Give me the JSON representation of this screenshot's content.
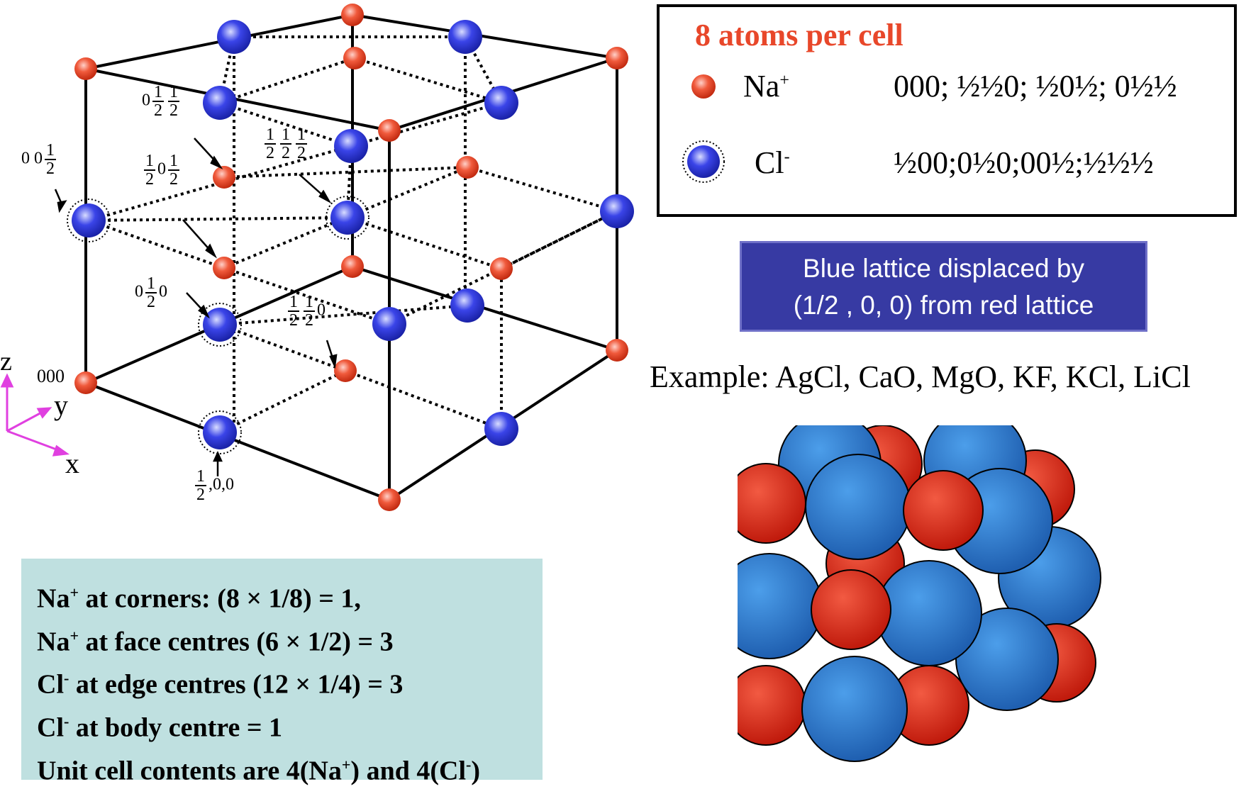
{
  "lattice": {
    "coord_labels": {
      "c000": "000",
      "c00half": "0 0",
      "c0halfhalf": "0",
      "chalfhalfhalf": "",
      "chalf0half": "0",
      "c0half0": "0",
      "c0half0_b": "0",
      "chalfhalf0": "0",
      "chalf00": ",0,0"
    },
    "frac": {
      "num": "1",
      "den": "2"
    },
    "axes": {
      "z": "z",
      "y": "y",
      "x": "x"
    },
    "colors": {
      "na": "#e8472a",
      "cl": "#2b34d6",
      "axis": "#e040e0"
    }
  },
  "info": {
    "title": "8 atoms per cell",
    "na_label": "Na",
    "na_sup": "+",
    "cl_label": "Cl",
    "cl_sup": "-",
    "na_positions": "000;  ½½0;  ½0½;  0½½",
    "cl_positions": "½00;0½0;00½;½½½"
  },
  "note": {
    "line1": "Blue lattice displaced by",
    "line2": "(1/2 , 0, 0) from red lattice"
  },
  "example": "Example: AgCl, CaO, MgO, KF, KCl, LiCl",
  "calc": {
    "l1_a": "Na",
    "l1_sup": "+",
    "l1_b": " at corners: (8 × 1/8) = 1,",
    "l2_a": "Na",
    "l2_sup": "+",
    "l2_b": " at face centres (6 × 1/2) = 3",
    "l3_a": "Cl",
    "l3_sup": "-",
    "l3_b": " at edge centres (12 × 1/4) = 3",
    "l4_a": "Cl",
    "l4_sup": "-",
    "l4_b": " at body centre = 1",
    "l5_a": "Unit cell contents are 4(Na",
    "l5_sup1": "+",
    "l5_b": ") and 4(Cl",
    "l5_sup2": "-",
    "l5_c": ")"
  },
  "packing": {
    "colors": {
      "red": "#e02a18",
      "blue": "#2f86d8"
    }
  }
}
